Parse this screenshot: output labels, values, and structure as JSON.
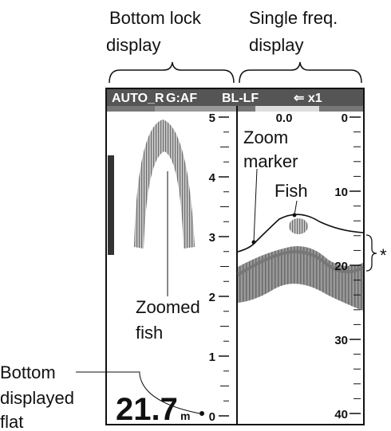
{
  "top_labels": {
    "bottom_lock": [
      "Bottom lock",
      "display"
    ],
    "single_freq": [
      "Single freq.",
      "display"
    ]
  },
  "header": {
    "mode": "AUTO_R",
    "gain": "G:AF",
    "freq": "BL-LF",
    "zoom": "⇐ x1"
  },
  "left_scale": [
    "5",
    "4",
    "3",
    "2",
    "1",
    "0"
  ],
  "right_scale": {
    "top": "0.0",
    "labels": [
      "0",
      "10",
      "20",
      "30",
      "40"
    ]
  },
  "callouts": {
    "zoom_marker": [
      "Zoom",
      "marker"
    ],
    "fish": "Fish",
    "zoomed_fish": [
      "Zoomed",
      "fish"
    ],
    "bottom": [
      "Bottom",
      "displayed",
      "flat"
    ],
    "asterisk": "*"
  },
  "depth": {
    "value": "21.7",
    "unit": "m"
  }
}
